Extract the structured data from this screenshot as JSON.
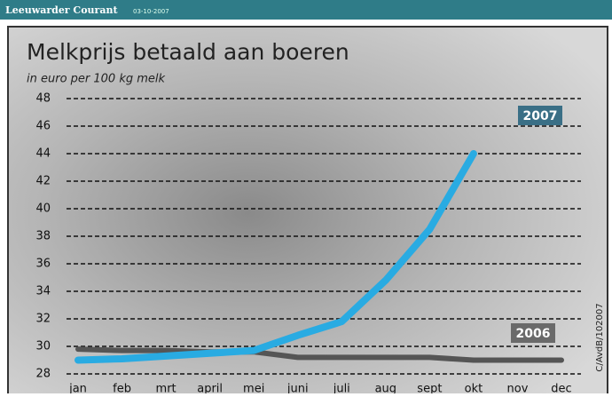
{
  "header": {
    "source": "Leeuwarder Courant",
    "date": "03-10-2007"
  },
  "credit": "C/AvdB/102007",
  "chart_data": {
    "type": "line",
    "title": "Melkprijs betaald aan boeren",
    "subtitle": "in euro per 100 kg melk",
    "categories": [
      "jan",
      "feb",
      "mrt",
      "april",
      "mei",
      "juni",
      "juli",
      "aug",
      "sept",
      "okt",
      "nov",
      "dec"
    ],
    "series": [
      {
        "name": "2007",
        "color": "#29abe2",
        "values": [
          29.0,
          29.1,
          29.3,
          29.5,
          29.7,
          30.8,
          31.8,
          34.8,
          38.5,
          44.0,
          null,
          null
        ]
      },
      {
        "name": "2006",
        "color": "#555555",
        "values": [
          29.8,
          29.7,
          29.7,
          29.6,
          29.6,
          29.2,
          29.2,
          29.2,
          29.2,
          29.0,
          29.0,
          29.0
        ]
      }
    ],
    "ylim": [
      28,
      48
    ],
    "yticks": [
      28,
      30,
      32,
      34,
      36,
      38,
      40,
      42,
      44,
      46,
      48
    ],
    "grid": true
  }
}
